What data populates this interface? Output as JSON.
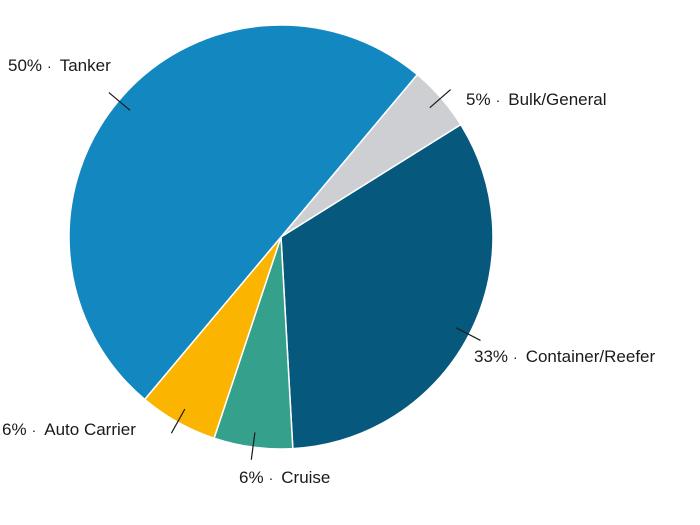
{
  "chart_data": {
    "type": "pie",
    "title": "",
    "separator": "·",
    "slices": [
      {
        "label": "Bulk/General",
        "value": 5,
        "pct_label": "5%",
        "color": "#cdcfd2"
      },
      {
        "label": "Container/Reefer",
        "value": 33,
        "pct_label": "33%",
        "color": "#06587c"
      },
      {
        "label": "Cruise",
        "value": 6,
        "pct_label": "6%",
        "color": "#35a08c"
      },
      {
        "label": "Auto Carrier",
        "value": 6,
        "pct_label": "6%",
        "color": "#fbb400"
      },
      {
        "label": "Tanker",
        "value": 50,
        "pct_label": "50%",
        "color": "#1387c0"
      }
    ]
  }
}
